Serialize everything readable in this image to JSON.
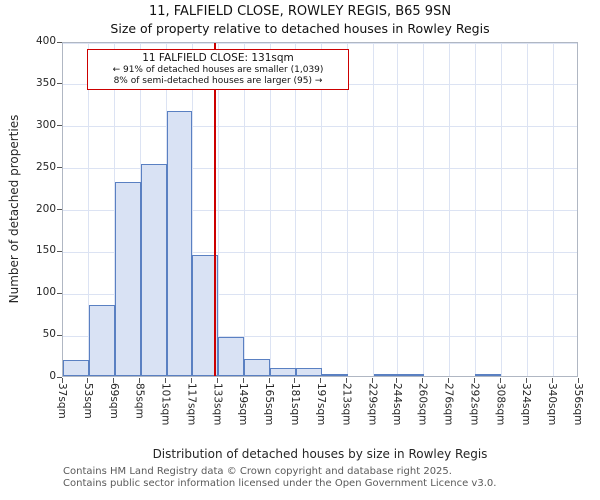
{
  "title": "11, FALFIELD CLOSE, ROWLEY REGIS, B65 9SN",
  "subtitle": "Size of property relative to detached houses in Rowley Regis",
  "ylabel": "Number of detached properties",
  "xlabel": "Distribution of detached houses by size in Rowley Regis",
  "annotation": {
    "line1": "11 FALFIELD CLOSE: 131sqm",
    "line2": "← 91% of detached houses are smaller (1,039)",
    "line3": "8% of semi-detached houses are larger (95) →"
  },
  "footer": {
    "line1": "Contains HM Land Registry data © Crown copyright and database right 2025.",
    "line2": "Contains public sector information licensed under the Open Government Licence v3.0."
  },
  "chart_data": {
    "type": "bar",
    "title": "11, FALFIELD CLOSE, ROWLEY REGIS, B65 9SN",
    "subtitle": "Size of property relative to detached houses in Rowley Regis",
    "xlabel": "Distribution of detached houses by size in Rowley Regis",
    "ylabel": "Number of detached properties",
    "bin_edges": [
      37,
      53,
      69,
      85,
      101,
      117,
      133,
      149,
      165,
      181,
      197,
      213,
      229,
      244,
      260,
      276,
      292,
      308,
      324,
      340,
      356
    ],
    "tick_labels": [
      "37sqm",
      "53sqm",
      "69sqm",
      "85sqm",
      "101sqm",
      "117sqm",
      "133sqm",
      "149sqm",
      "165sqm",
      "181sqm",
      "197sqm",
      "213sqm",
      "229sqm",
      "244sqm",
      "260sqm",
      "276sqm",
      "292sqm",
      "308sqm",
      "324sqm",
      "340sqm",
      "356sqm"
    ],
    "values": [
      19,
      85,
      232,
      253,
      316,
      144,
      47,
      20,
      9,
      9,
      3,
      0,
      2,
      2,
      0,
      0,
      2,
      0,
      0,
      0
    ],
    "marker_value": 131,
    "marker_label": "11 FALFIELD CLOSE: 131sqm",
    "ylim": [
      0,
      400
    ],
    "ytick_step": 50,
    "ytick_labels": [
      "0",
      "50",
      "100",
      "150",
      "200",
      "250",
      "300",
      "350",
      "400"
    ],
    "grid": true,
    "colors": {
      "bar_fill": "#d9e2f4",
      "bar_border": "#5a80c2",
      "marker": "#cc0000",
      "grid": "#dce3f3"
    }
  }
}
